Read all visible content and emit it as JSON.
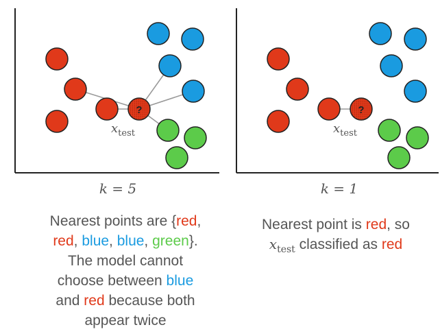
{
  "colors": {
    "red": "#e0391a",
    "blue": "#1a9be0",
    "green": "#5ccb4a",
    "line": "#999999",
    "text": "#555555"
  },
  "panels": [
    {
      "k_label": "k = 5",
      "test_label": {
        "x": "x",
        "sub": "test"
      },
      "test_glyph": "?",
      "caption": {
        "line1_prefix": "Nearest points are {",
        "w_red1": "red",
        "sep1": ",",
        "w_red2": "red",
        "sep2": ", ",
        "w_blue1": "blue",
        "sep3": ", ",
        "w_blue2": "blue",
        "sep4": ", ",
        "w_green": "green",
        "close": "}.",
        "line3": "The model cannot",
        "line4_prefix": "choose between ",
        "w_blue3": "blue",
        "line5_prefix": "and ",
        "w_red3": "red",
        "line5_suffix": " because both",
        "line6": "appear twice"
      }
    },
    {
      "k_label": "k = 1",
      "test_label": {
        "x": "x",
        "sub": "test"
      },
      "test_glyph": "?",
      "caption": {
        "prefix": "Nearest point is ",
        "w_red": "red",
        "mid": ", so",
        "x": "x",
        "sub": "test",
        "after": " classified as ",
        "w_red2": "red"
      }
    }
  ]
}
